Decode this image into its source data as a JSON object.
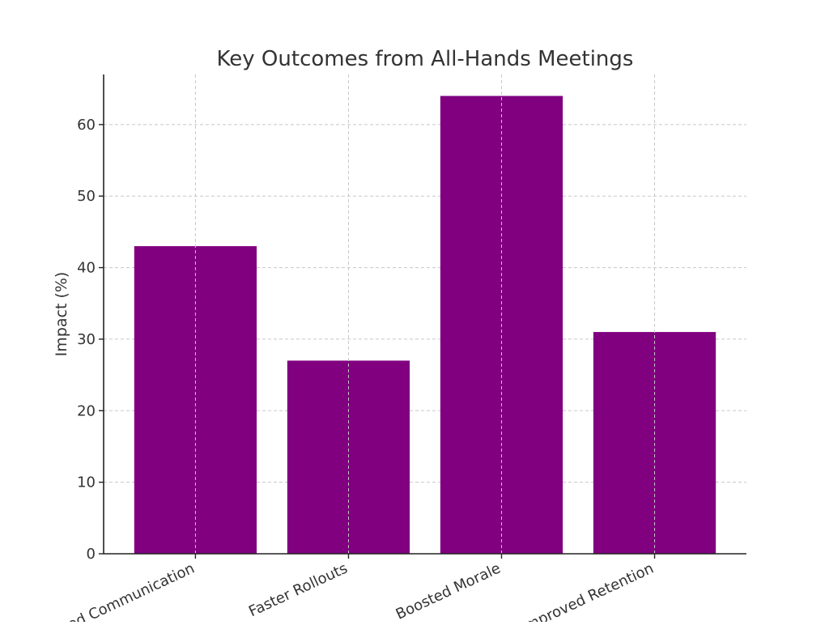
{
  "chart_data": {
    "type": "bar",
    "title": "Key Outcomes from All-Hands Meetings",
    "xlabel": "",
    "ylabel": "Impact (%)",
    "categories": [
      "Improved Communication",
      "Faster Rollouts",
      "Boosted Morale",
      "Improved Retention"
    ],
    "values": [
      43,
      27,
      64,
      31
    ],
    "ylim": [
      0,
      67
    ],
    "yticks": [
      0,
      10,
      20,
      30,
      40,
      50,
      60
    ],
    "grid": true,
    "bar_color": "#800080",
    "x_tick_rotation_deg": 25
  }
}
